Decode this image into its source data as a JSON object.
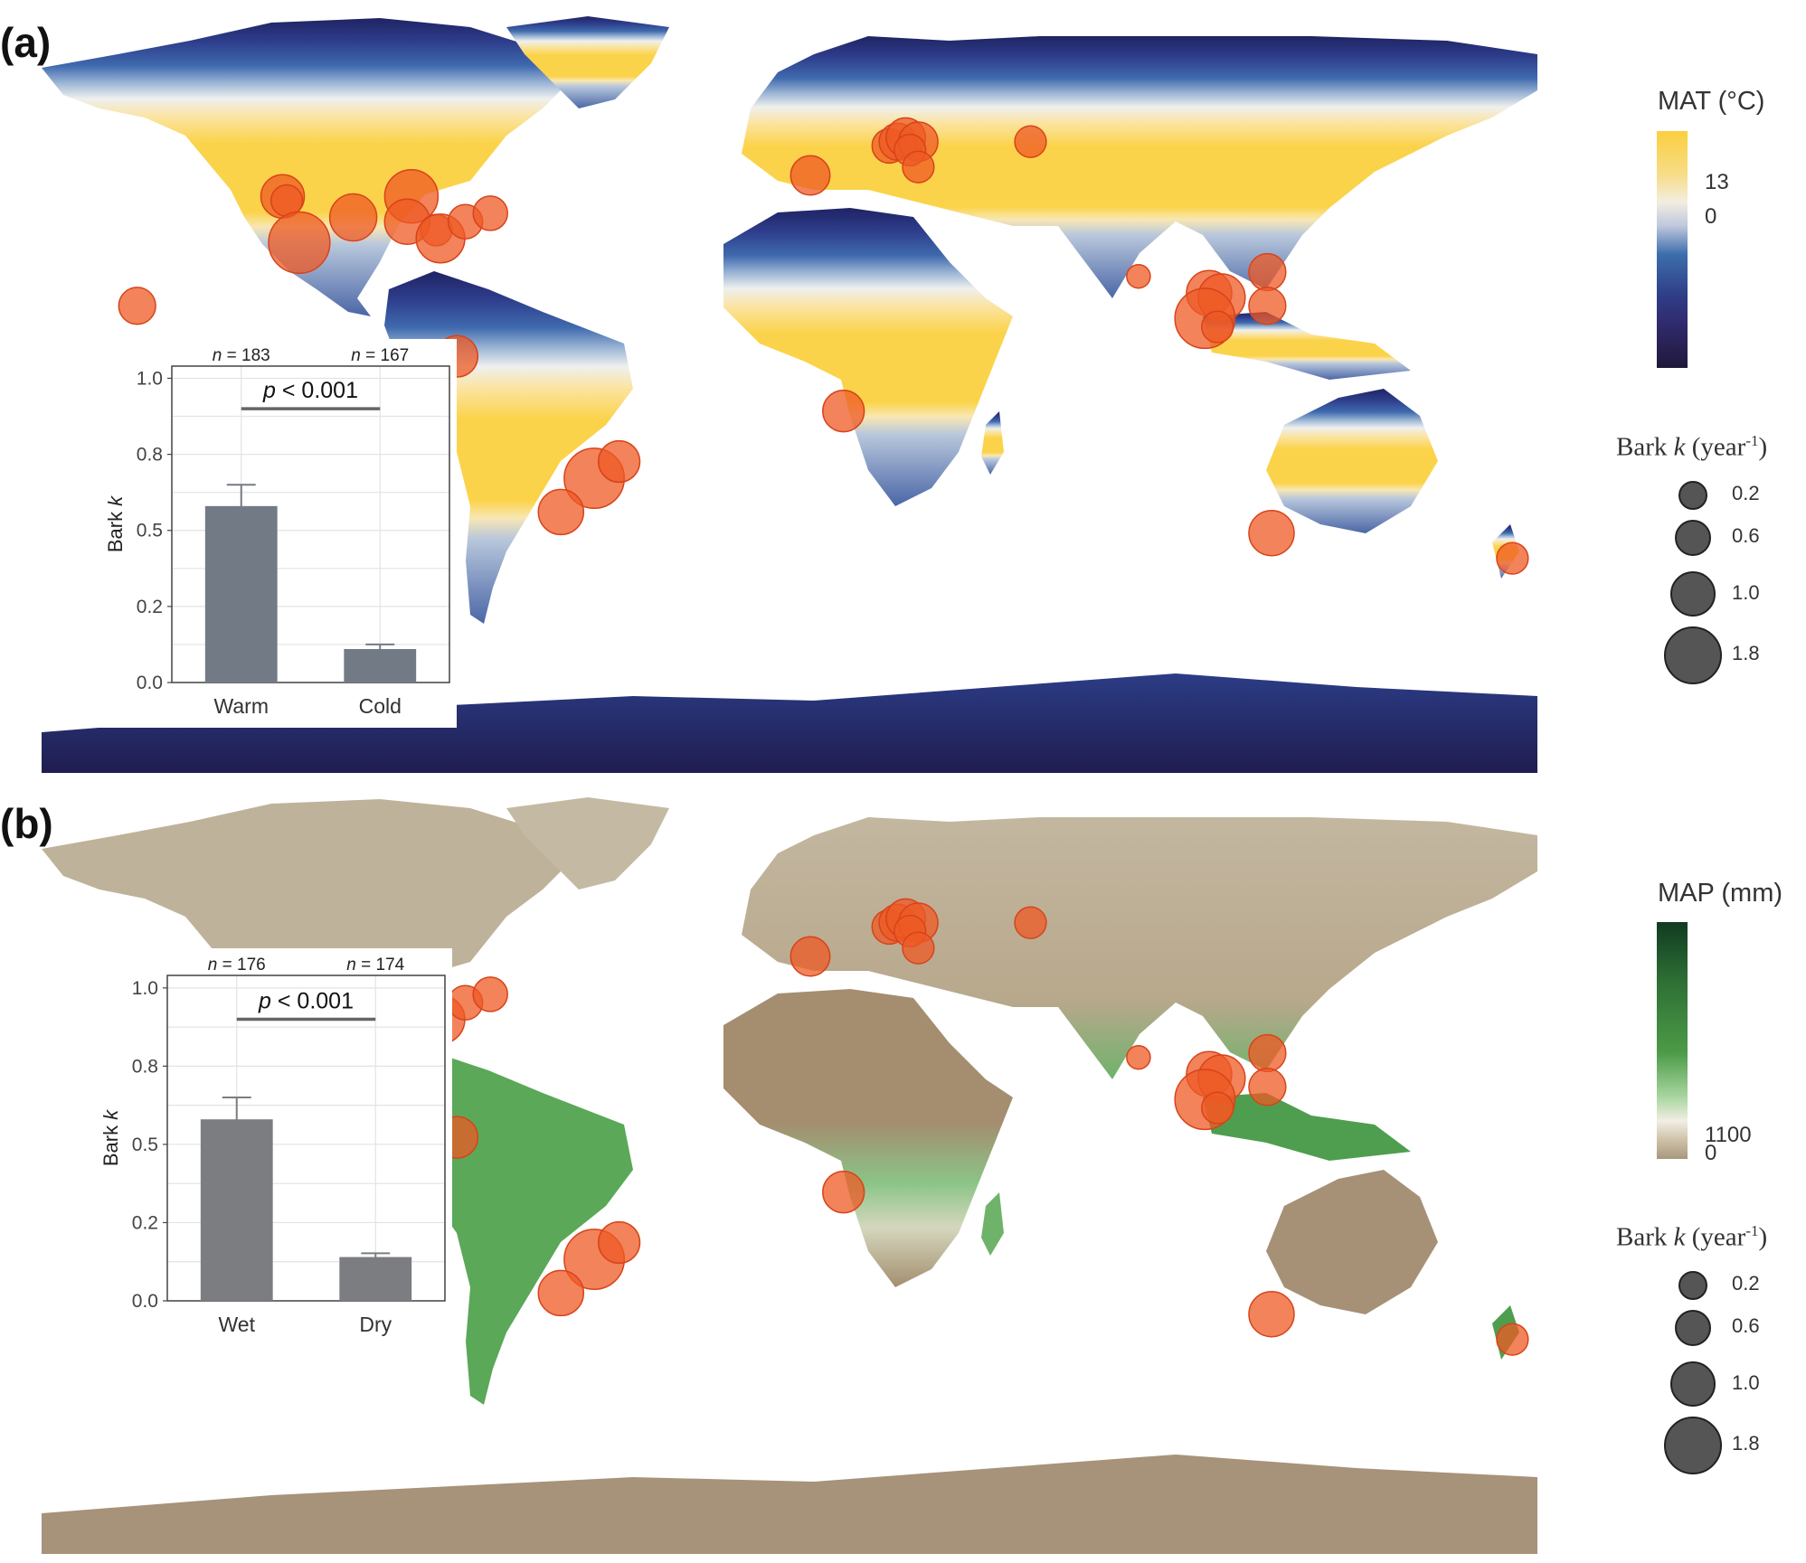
{
  "panels": [
    {
      "label": "(a)",
      "colorbar": {
        "title": "MAT (°C)",
        "ticks": [
          "13",
          "0"
        ],
        "colors": [
          "#fbcf3f",
          "#f3ede0",
          "#3d6eac",
          "#2f2a6b",
          "#20183a"
        ]
      },
      "inset": {
        "n_labels": [
          "183",
          "167"
        ],
        "p_label": "p < 0.001",
        "ylabel": "Bark",
        "ylabel_k": "k"
      }
    },
    {
      "label": "(b)",
      "colorbar": {
        "title": "MAP (mm)",
        "ticks": [
          "1100",
          "0"
        ],
        "colors": [
          "#103b22",
          "#3f8a3f",
          "#8ec887",
          "#f2eee3",
          "#a8977b"
        ]
      },
      "inset": {
        "n_labels": [
          "176",
          "174"
        ],
        "p_label": "p < 0.001",
        "ylabel": "Bark",
        "ylabel_k": "k"
      }
    }
  ],
  "bark_legend": {
    "title_prefix": "Bark ",
    "title_k": "k",
    "title_unit": " (year",
    "title_exp": "-1",
    "title_close": ")",
    "sizes": [
      "0.2",
      "0.6",
      "1.0",
      "1.8"
    ]
  },
  "chart_data": [
    {
      "type": "bar",
      "categories": [
        "Warm",
        "Cold"
      ],
      "values": [
        0.58,
        0.11
      ],
      "errors": [
        0.07,
        0.015
      ],
      "n": [
        183,
        167
      ],
      "annotation": "p < 0.001",
      "ylabel": "Bark k",
      "ylim": [
        0,
        1.04
      ],
      "yticks": [
        0.0,
        0.25,
        0.5,
        0.75,
        1.0
      ],
      "yticklabels": [
        "0.0",
        "0.2",
        "0.5",
        "0.8",
        "1.0"
      ],
      "bar_color": "#727a86"
    },
    {
      "type": "bar",
      "categories": [
        "Wet",
        "Dry"
      ],
      "values": [
        0.58,
        0.14
      ],
      "errors": [
        0.07,
        0.012
      ],
      "n": [
        176,
        174
      ],
      "annotation": "p < 0.001",
      "ylabel": "Bark k",
      "ylim": [
        0,
        1.04
      ],
      "yticks": [
        0.0,
        0.25,
        0.5,
        0.75,
        1.0
      ],
      "yticklabels": [
        "0.0",
        "0.2",
        "0.5",
        "0.8",
        "1.0"
      ],
      "bar_color": "#7b7d80"
    }
  ],
  "sites": {
    "marker_color": "#ee5a24",
    "points": [
      {
        "lon": -122,
        "lat": 47,
        "k": 0.8
      },
      {
        "lon": -121,
        "lat": 46,
        "k": 0.3
      },
      {
        "lon": -118,
        "lat": 36,
        "k": 2.0
      },
      {
        "lon": -105,
        "lat": 42,
        "k": 1.0
      },
      {
        "lon": -91,
        "lat": 47,
        "k": 1.4
      },
      {
        "lon": -92,
        "lat": 41,
        "k": 0.9
      },
      {
        "lon": -85,
        "lat": 39,
        "k": 0.3
      },
      {
        "lon": -84,
        "lat": 37,
        "k": 1.1
      },
      {
        "lon": -78,
        "lat": 41,
        "k": 0.4
      },
      {
        "lon": -72,
        "lat": 43,
        "k": 0.4
      },
      {
        "lon": -157,
        "lat": 21,
        "k": 0.5
      },
      {
        "lon": -80,
        "lat": 9,
        "k": 0.7
      },
      {
        "lon": 13,
        "lat": -4,
        "k": 0.7
      },
      {
        "lon": -47,
        "lat": -20,
        "k": 1.9
      },
      {
        "lon": -41,
        "lat": -16,
        "k": 0.7
      },
      {
        "lon": -55,
        "lat": -28,
        "k": 0.9
      },
      {
        "lon": 5,
        "lat": 52,
        "k": 0.6
      },
      {
        "lon": 24,
        "lat": 59,
        "k": 0.4
      },
      {
        "lon": 26,
        "lat": 60,
        "k": 0.5
      },
      {
        "lon": 28,
        "lat": 61,
        "k": 0.6
      },
      {
        "lon": 31,
        "lat": 60,
        "k": 0.6
      },
      {
        "lon": 29,
        "lat": 58,
        "k": 0.3
      },
      {
        "lon": 31,
        "lat": 54,
        "k": 0.3
      },
      {
        "lon": 58,
        "lat": 60,
        "k": 0.3
      },
      {
        "lon": 84,
        "lat": 28,
        "k": 0.1
      },
      {
        "lon": 101,
        "lat": 24,
        "k": 0.9
      },
      {
        "lon": 104,
        "lat": 23,
        "k": 1.0
      },
      {
        "lon": 100,
        "lat": 18,
        "k": 1.9
      },
      {
        "lon": 103,
        "lat": 16,
        "k": 0.3
      },
      {
        "lon": 115,
        "lat": 29,
        "k": 0.5
      },
      {
        "lon": 115,
        "lat": 21,
        "k": 0.5
      },
      {
        "lon": 116,
        "lat": -33,
        "k": 0.9
      },
      {
        "lon": 174,
        "lat": -39,
        "k": 0.3
      }
    ]
  }
}
